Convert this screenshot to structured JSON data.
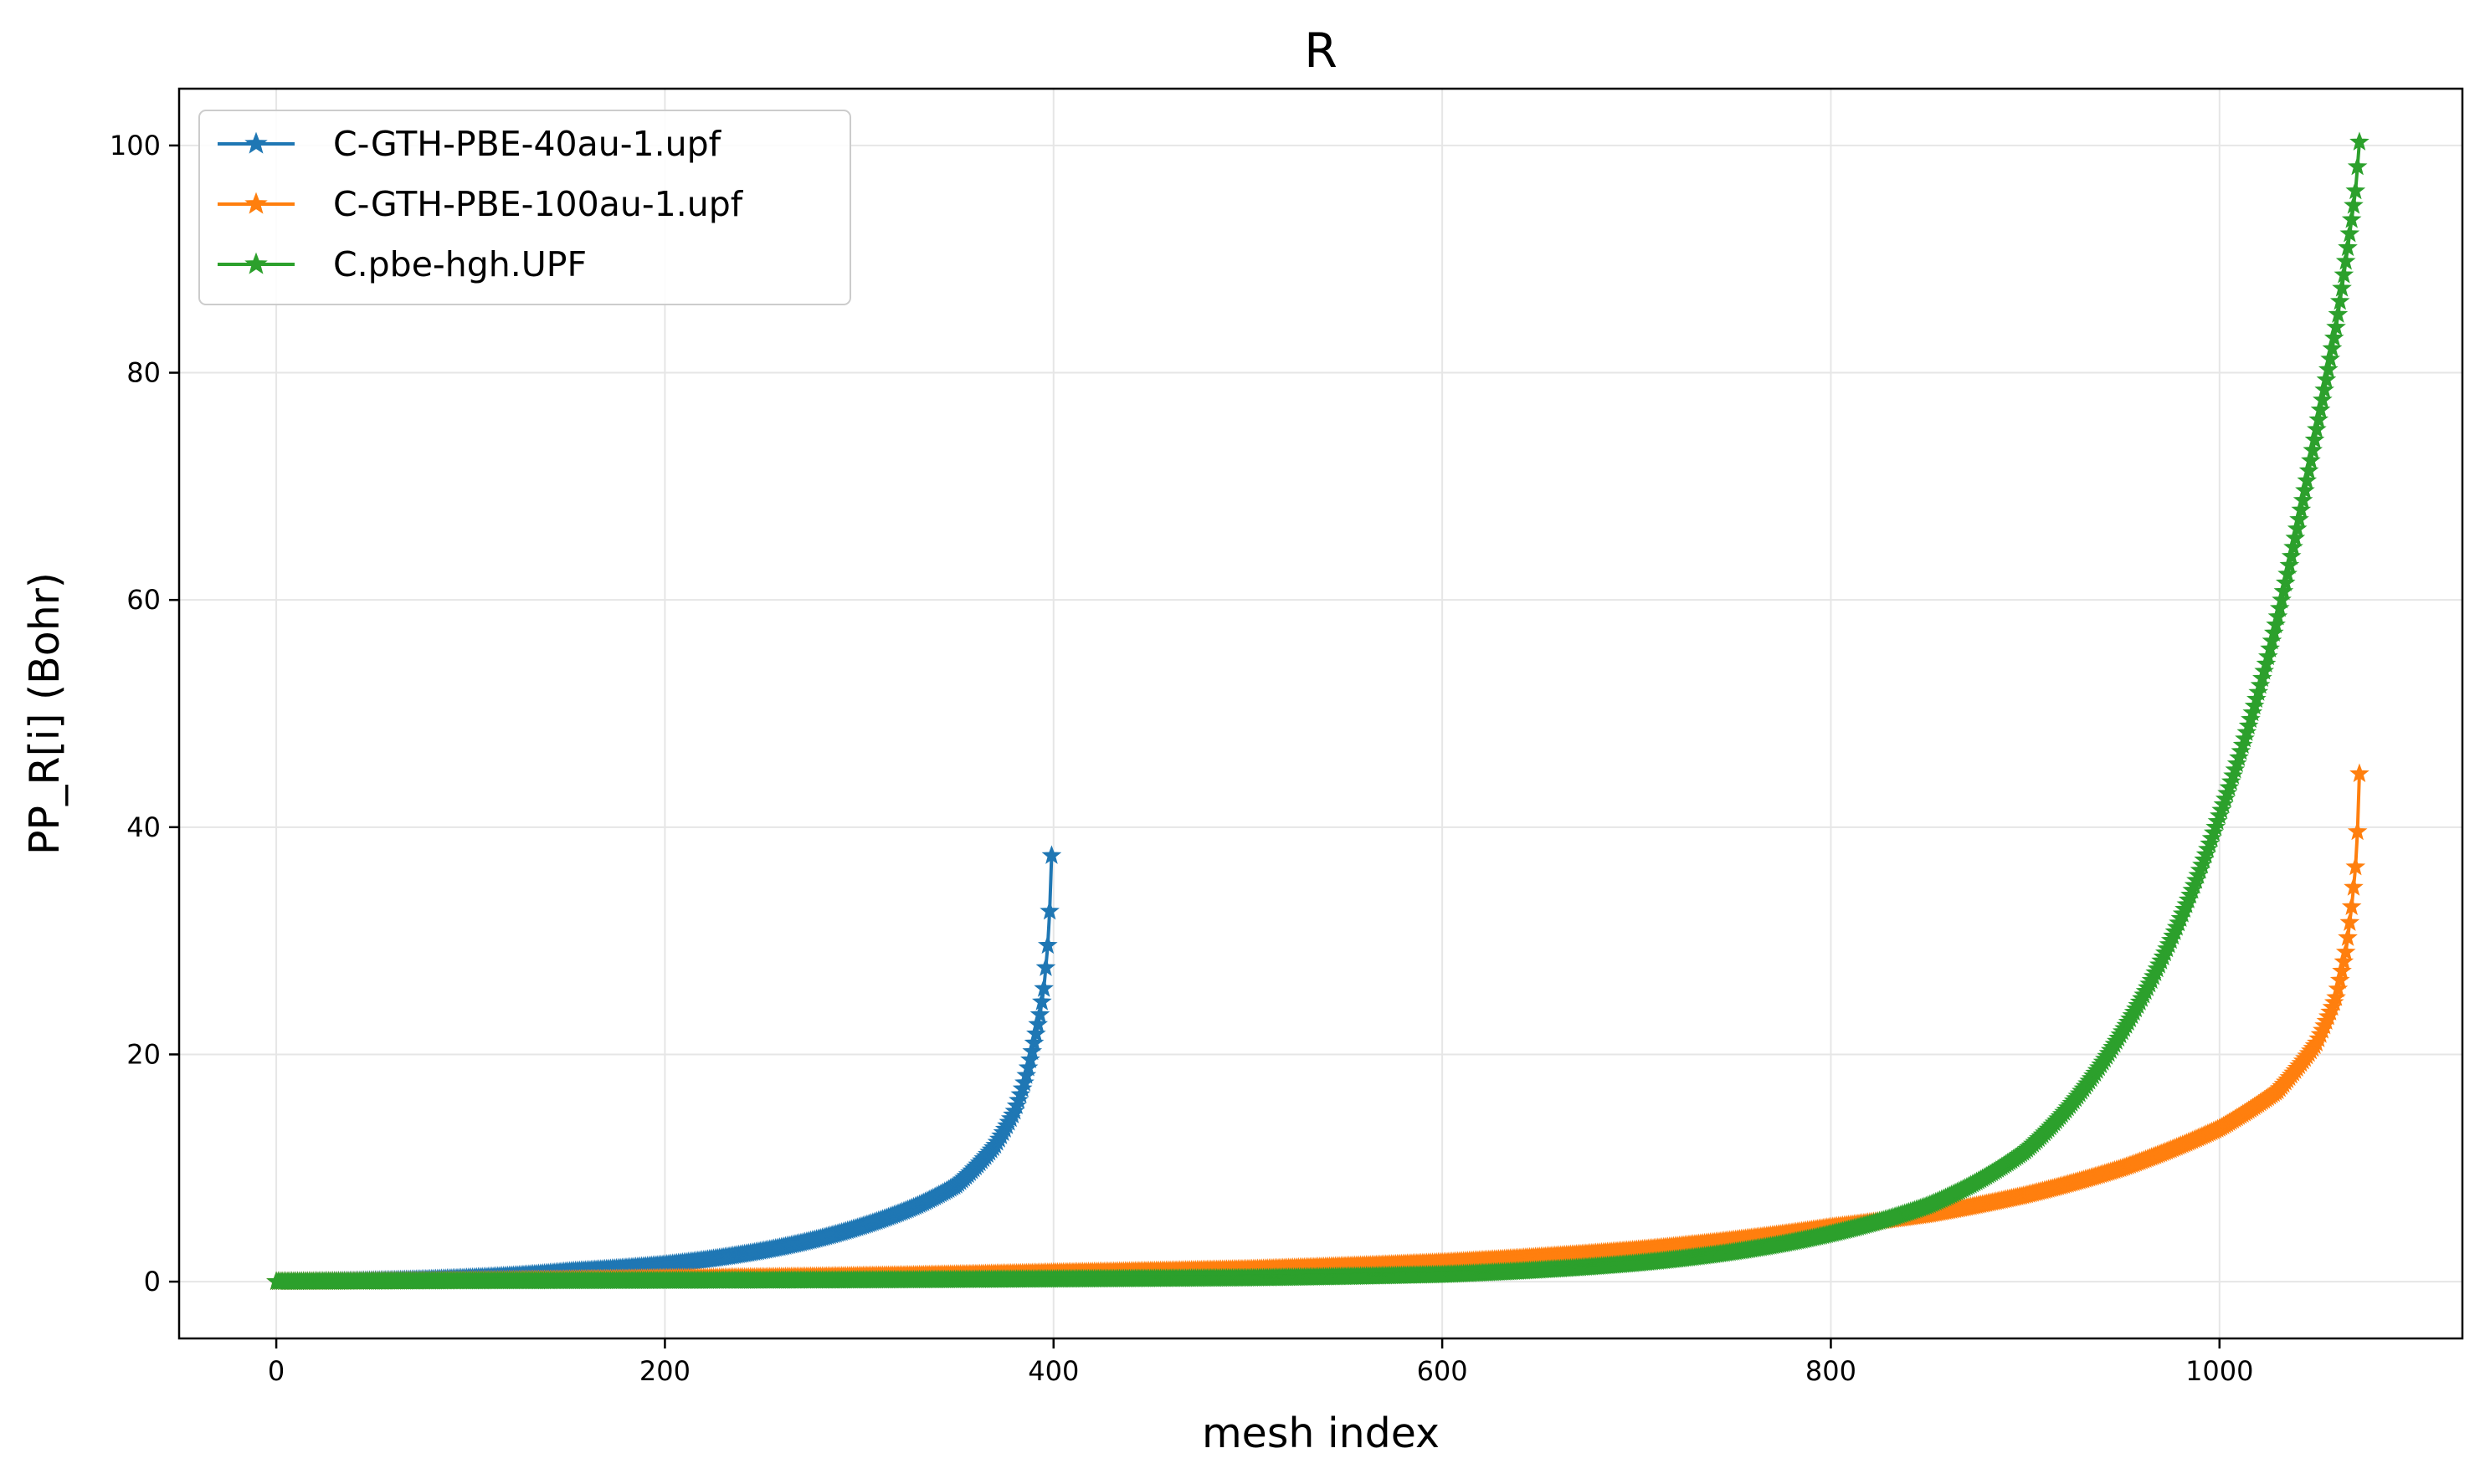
{
  "chart_data": {
    "type": "line",
    "title": "R",
    "xlabel": "mesh index",
    "ylabel": "PP_R[i] (Bohr)",
    "xlim": [
      -50,
      1125
    ],
    "ylim": [
      -5,
      105
    ],
    "xticks": [
      0,
      200,
      400,
      600,
      800,
      1000
    ],
    "yticks": [
      0,
      20,
      40,
      60,
      80,
      100
    ],
    "grid": true,
    "legend_position": "top-left",
    "marker": "star",
    "series": [
      {
        "name": "C-GTH-PBE-40au-1.upf",
        "color": "#1f77b4",
        "x": [
          0,
          50,
          100,
          150,
          200,
          250,
          300,
          330,
          350,
          370,
          380,
          385,
          390,
          393,
          395,
          397,
          398,
          399
        ],
        "y": [
          0,
          0.1,
          0.35,
          0.9,
          1.5,
          2.7,
          4.8,
          6.7,
          8.5,
          12.0,
          15.0,
          17.5,
          21.0,
          23.5,
          25.8,
          29.6,
          32.6,
          37.5
        ]
      },
      {
        "name": "C-GTH-PBE-100au-1.upf",
        "color": "#ff7f0e",
        "x": [
          0,
          100,
          200,
          300,
          400,
          500,
          600,
          700,
          800,
          850,
          900,
          950,
          1000,
          1030,
          1050,
          1060,
          1065,
          1068,
          1070,
          1071,
          1072
        ],
        "y": [
          0,
          0.1,
          0.3,
          0.5,
          0.8,
          1.1,
          1.7,
          2.8,
          4.8,
          5.9,
          7.6,
          10.0,
          13.5,
          16.8,
          21.0,
          25.0,
          29.0,
          33.0,
          36.5,
          39.6,
          44.7
        ]
      },
      {
        "name": "C.pbe-hgh.UPF",
        "color": "#2ca02c",
        "x": [
          0,
          100,
          200,
          300,
          400,
          500,
          600,
          650,
          700,
          750,
          800,
          850,
          900,
          950,
          1000,
          1025,
          1050,
          1060,
          1070,
          1072
        ],
        "y": [
          0,
          0.05,
          0.08,
          0.12,
          0.2,
          0.3,
          0.6,
          1.0,
          1.6,
          2.6,
          4.2,
          6.7,
          11.5,
          22.0,
          41.0,
          55.0,
          75.0,
          84.0,
          96.0,
          100.3
        ]
      }
    ]
  }
}
